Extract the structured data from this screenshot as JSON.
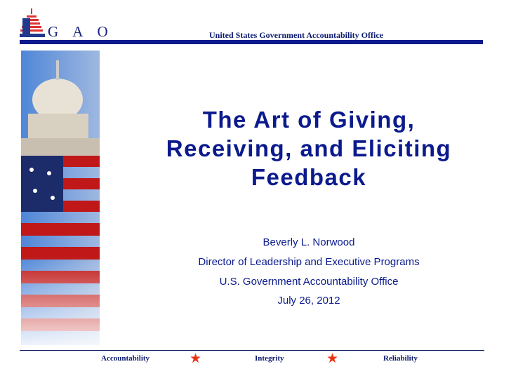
{
  "header": {
    "logo_text": "G A O",
    "org_name": "United States Government Accountability Office"
  },
  "title": {
    "line1": "The Art of Giving,",
    "line2": "Receiving, and Eliciting",
    "line3": "Feedback"
  },
  "presenter": {
    "name": "Beverly L. Norwood",
    "role": "Director of Leadership and  Executive Programs",
    "org": "U.S. Government Accountability Office",
    "date": "July 26, 2012"
  },
  "footer": {
    "values": [
      "Accountability",
      "Integrity",
      "Reliability"
    ],
    "separator_icon": "star-icon"
  },
  "colors": {
    "brand_blue": "#0b1a8c",
    "star_red": "#ee3311"
  }
}
